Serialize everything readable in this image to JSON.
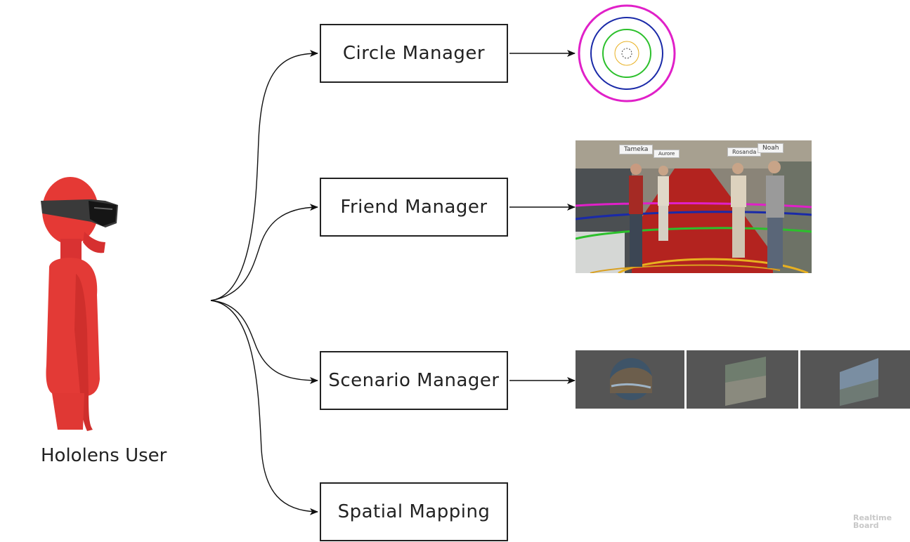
{
  "user": {
    "label": "Hololens User"
  },
  "managers": [
    {
      "label": "Circle Manager"
    },
    {
      "label": "Friend Manager"
    },
    {
      "label": "Scenario Manager"
    },
    {
      "label": "Spatial Mapping"
    }
  ],
  "friend_view": {
    "names": [
      "Tameka",
      "Aurore",
      "Rosanda",
      "Noah"
    ]
  },
  "circle_colors": [
    "#e020c8",
    "#1a2aa8",
    "#2cc02c",
    "#e8b020"
  ],
  "watermark": {
    "line1": "Realtime",
    "line2": "Board"
  }
}
